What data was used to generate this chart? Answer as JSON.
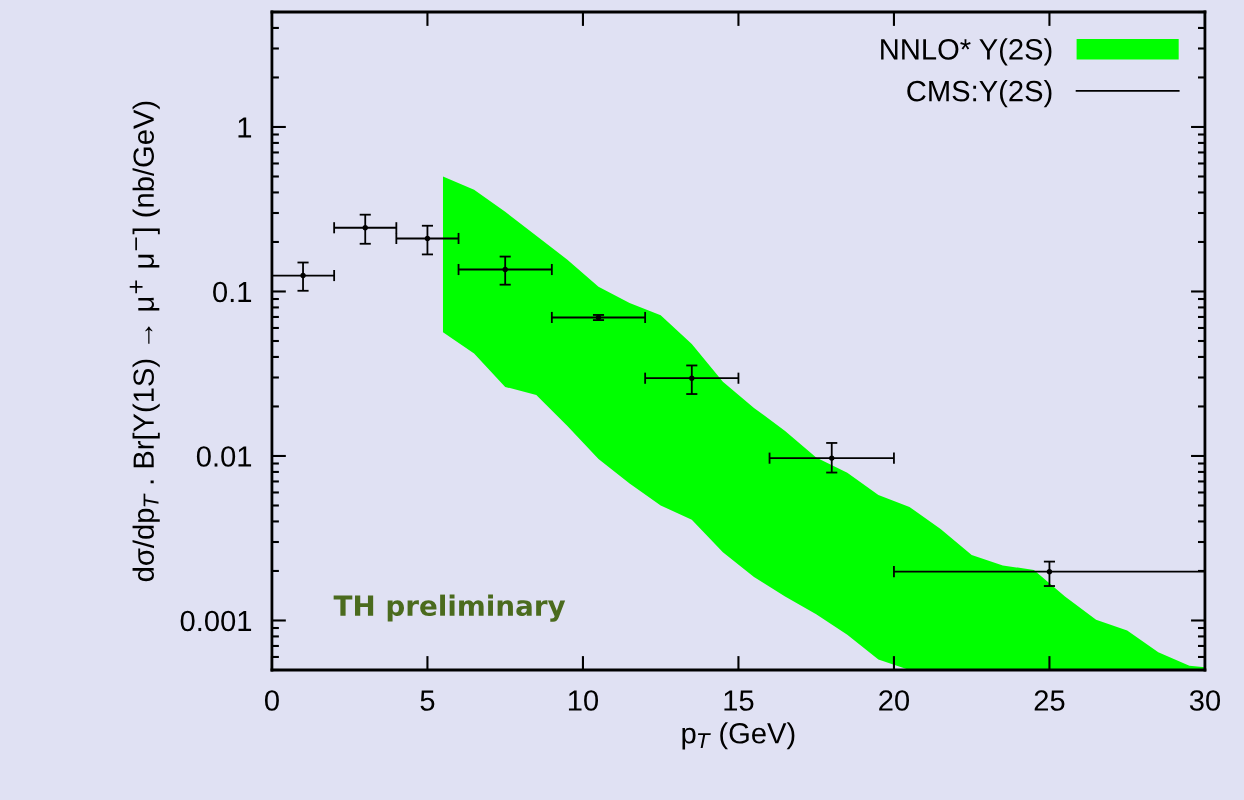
{
  "chart_data": {
    "type": "scatter",
    "xlabel": "p$_{T}$ (GeV)",
    "ylabel": "dσ/dp$_{T}$ . Br[Υ(1S) → μ$^{+}$ μ$^{−}$] (nb/GeV)",
    "xlim": [
      0,
      30
    ],
    "xticks": [
      0,
      5,
      10,
      15,
      20,
      25,
      30
    ],
    "ylim": [
      0.0005,
      5
    ],
    "yticks": [
      0.001,
      0.01,
      0.1,
      1
    ],
    "log": "y",
    "grid": false,
    "legend": "top right",
    "marker": "circle",
    "annotations": [
      "TH preliminary"
    ],
    "series": [
      {
        "name": "NNLO* Y(2S)",
        "type": "area",
        "color": "#00ff00",
        "x": [
          5.5,
          6.5,
          7.5,
          8.5,
          9.5,
          10.5,
          11.5,
          12.5,
          13.5,
          14.5,
          15.5,
          16.5,
          17.5,
          18.5,
          19.5,
          20.5,
          21.5,
          22.5,
          23.5,
          24.5,
          25.5,
          26.5,
          27.5,
          28.5,
          29.5,
          30
        ],
        "values": [
          null,
          null,
          null,
          null,
          null,
          null,
          null,
          null,
          null,
          null,
          null,
          null,
          null,
          null,
          null,
          null,
          null,
          null,
          null,
          null,
          null,
          null,
          null,
          null,
          null,
          null
        ],
        "upper": [
          0.5,
          0.415,
          0.305,
          0.218,
          0.156,
          0.107,
          0.085,
          0.0716,
          0.048,
          0.0283,
          0.0196,
          0.0142,
          0.0098,
          0.0079,
          0.0058,
          0.0049,
          0.0036,
          0.0025,
          0.00216,
          0.00203,
          0.0014,
          0.00101,
          0.00087,
          0.00064,
          0.00053,
          0.00052
        ],
        "lower": [
          0.0565,
          0.042,
          0.0263,
          0.0235,
          0.0152,
          0.0096,
          0.0068,
          0.005,
          0.0041,
          0.0026,
          0.00184,
          0.0014,
          0.00109,
          0.00082,
          0.00058,
          0.0005,
          0.0005,
          0.0005,
          0.0005,
          0.0005,
          0.0005,
          0.0005,
          0.0005,
          0.0005,
          0.0005,
          0.0005
        ]
      },
      {
        "name": "CMS:Y(2S)",
        "color": "#000000",
        "x": [
          1,
          3,
          5,
          7.5,
          10.5,
          13.5,
          18,
          25
        ],
        "values": [
          0.125,
          0.244,
          0.21,
          0.136,
          0.0695,
          0.0297,
          0.0097,
          0.00198
        ],
        "errors": [
          [
            0.101,
            0.15
          ],
          [
            0.195,
            0.293
          ],
          [
            0.168,
            0.251
          ],
          [
            0.11,
            0.163
          ],
          [
            0.067,
            0.072
          ],
          [
            0.0238,
            0.0355
          ],
          [
            0.00793,
            0.012
          ],
          [
            0.00162,
            0.00228
          ]
        ],
        "xerrors": [
          [
            0,
            2
          ],
          [
            2,
            4
          ],
          [
            4,
            6
          ],
          [
            6,
            9
          ],
          [
            9,
            12
          ],
          [
            12,
            15
          ],
          [
            16,
            20
          ],
          [
            20,
            30
          ]
        ]
      }
    ]
  }
}
